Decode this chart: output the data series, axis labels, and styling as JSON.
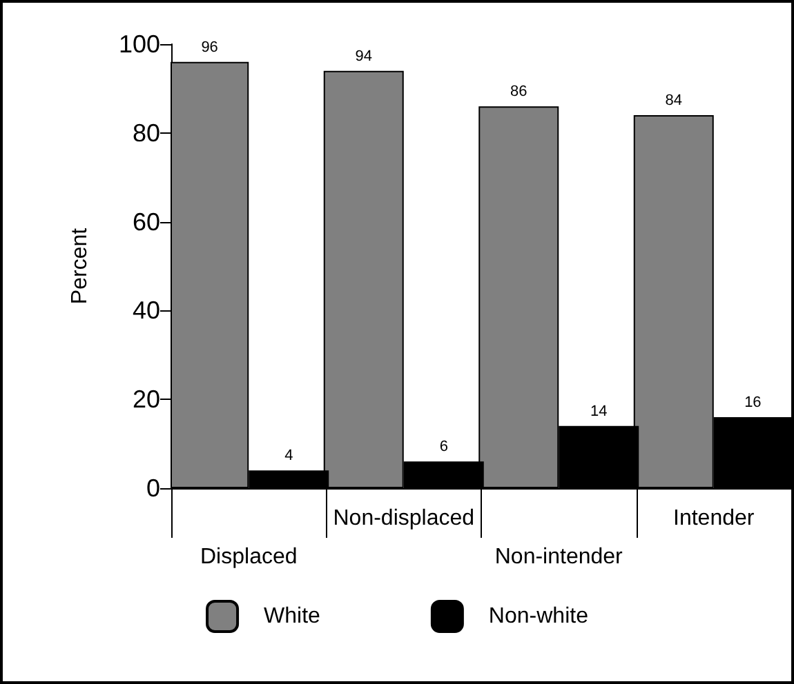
{
  "chart_data": {
    "type": "bar",
    "ylabel": "Percent",
    "categories": [
      "Displaced",
      "Non-displaced",
      "Non-intender",
      "Intender"
    ],
    "series": [
      {
        "name": "White",
        "color": "#808080",
        "values": [
          96,
          94,
          86,
          84
        ]
      },
      {
        "name": "Non-white",
        "color": "#000000",
        "values": [
          4,
          6,
          14,
          16
        ]
      }
    ],
    "ylim": [
      0,
      100
    ],
    "yticks": [
      0,
      20,
      40,
      60,
      80,
      100
    ],
    "grid": false,
    "legend": "bottom",
    "data_labels": true
  }
}
